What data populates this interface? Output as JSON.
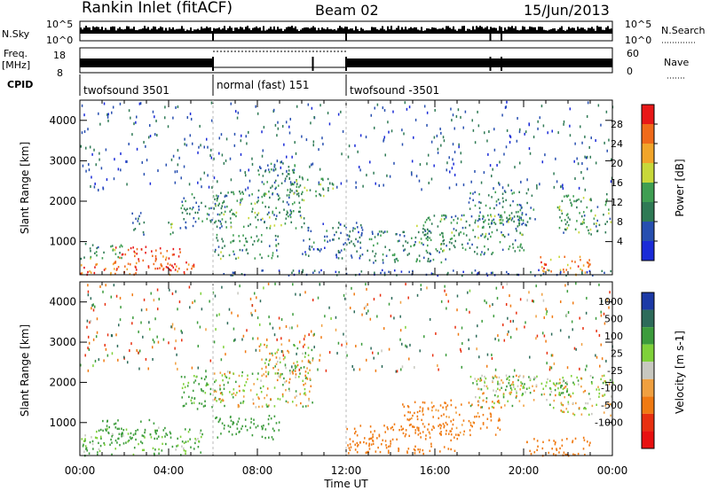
{
  "header": {
    "title": "Rankin Inlet (fitACF)",
    "beam": "Beam 02",
    "date": "15/Jun/2013"
  },
  "top_panels": {
    "nsky_label": "N.Sky",
    "nsky_ticks": [
      "10^5",
      "10^0"
    ],
    "nsearch_label": "N.Search",
    "freq_label": "Freq.",
    "freq_unit": "[MHz]",
    "freq_ticks": [
      "18",
      "8"
    ],
    "nave_label": "Nave",
    "nave_ticks": [
      "60",
      "0"
    ],
    "cpid_label": "CPID"
  },
  "cpid_segments": [
    {
      "label": "twofsound 3501",
      "start": 0,
      "end": 6
    },
    {
      "label": "normal (fast) 151",
      "start": 6,
      "end": 12
    },
    {
      "label": "twofsound -3501",
      "start": 12,
      "end": 24
    }
  ],
  "time_axis": {
    "label": "Time UT",
    "ticks": [
      "00:00",
      "04:00",
      "08:00",
      "12:00",
      "16:00",
      "20:00",
      "00:00"
    ]
  },
  "range_axis": {
    "label": "Slant Range [km]",
    "ticks": [
      "1000",
      "2000",
      "3000",
      "4000"
    ]
  },
  "power_scale": {
    "label": "Power [dB]",
    "ticks": [
      "4",
      "8",
      "12",
      "16",
      "20",
      "24",
      "28"
    ],
    "colors": [
      "#1a2bd8",
      "#274fb0",
      "#2f7a55",
      "#3f9e52",
      "#c8d83a",
      "#f1a52a",
      "#f06a1a",
      "#e81818"
    ]
  },
  "velocity_scale": {
    "label": "Velocity [m s-1]",
    "ticks": [
      "1000",
      "500",
      "100",
      "25",
      "-25",
      "-100",
      "-500",
      "-1000"
    ],
    "colors": [
      "#1c3aa6",
      "#2d6b5a",
      "#3c9c3c",
      "#7fd13a",
      "#c8c8c0",
      "#f0a040",
      "#f07a12",
      "#e83010",
      "#e81010"
    ]
  },
  "chart_data": [
    {
      "type": "heatmap",
      "title": "Power",
      "xlabel": "Time UT",
      "ylabel": "Slant Range [km]",
      "xlim": [
        0,
        24
      ],
      "ylim": [
        180,
        4500
      ],
      "colorbar_label": "Power [dB]",
      "regions": [
        {
          "t0": 0.0,
          "t1": 5.2,
          "r0": 200,
          "r1": 520,
          "v": 26
        },
        {
          "t0": 1.5,
          "t1": 4.5,
          "r0": 320,
          "r1": 900,
          "v": 28
        },
        {
          "t0": 0.0,
          "t1": 2.0,
          "r0": 600,
          "r1": 1000,
          "v": 12
        },
        {
          "t0": 2.3,
          "t1": 2.9,
          "r0": 1150,
          "r1": 1800,
          "v": 10
        },
        {
          "t0": 3.8,
          "t1": 4.3,
          "r0": 1200,
          "r1": 1550,
          "v": 14
        },
        {
          "t0": 4.5,
          "t1": 6.6,
          "r0": 1350,
          "r1": 2200,
          "v": 10
        },
        {
          "t0": 6.0,
          "t1": 10.2,
          "r0": 1350,
          "r1": 2300,
          "v": 12
        },
        {
          "t0": 8.0,
          "t1": 10.0,
          "r0": 2100,
          "r1": 3000,
          "v": 10
        },
        {
          "t0": 9.5,
          "t1": 11.4,
          "r0": 2150,
          "r1": 2600,
          "v": 14
        },
        {
          "t0": 6.0,
          "t1": 9.0,
          "r0": 600,
          "r1": 1200,
          "v": 12
        },
        {
          "t0": 10.0,
          "t1": 13.0,
          "r0": 600,
          "r1": 1500,
          "v": 8
        },
        {
          "t0": 13.0,
          "t1": 16.5,
          "r0": 500,
          "r1": 1300,
          "v": 10
        },
        {
          "t0": 15.0,
          "t1": 20.0,
          "r0": 700,
          "r1": 1700,
          "v": 12
        },
        {
          "t0": 17.5,
          "t1": 20.5,
          "r0": 1400,
          "r1": 2300,
          "v": 10
        },
        {
          "t0": 21.5,
          "t1": 24.0,
          "r0": 1200,
          "r1": 2200,
          "v": 12
        },
        {
          "t0": 20.5,
          "t1": 23.0,
          "r0": 200,
          "r1": 650,
          "v": 24
        },
        {
          "t0": 6.0,
          "t1": 24.0,
          "r0": 180,
          "r1": 320,
          "v": 6
        }
      ]
    },
    {
      "type": "heatmap",
      "title": "Velocity",
      "xlabel": "Time UT",
      "ylabel": "Slant Range [km]",
      "xlim": [
        0,
        24
      ],
      "ylim": [
        180,
        4500
      ],
      "colorbar_label": "Velocity [m s-1]",
      "regions": [
        {
          "t0": 0.0,
          "t1": 5.5,
          "r0": 200,
          "r1": 900,
          "v": 150
        },
        {
          "t0": 1.0,
          "t1": 3.5,
          "r0": 600,
          "r1": 1100,
          "v": 300
        },
        {
          "t0": 4.5,
          "t1": 6.5,
          "r0": 1350,
          "r1": 2200,
          "v": 200
        },
        {
          "t0": 6.0,
          "t1": 10.5,
          "r0": 1400,
          "r1": 2300,
          "v": 0
        },
        {
          "t0": 8.0,
          "t1": 10.5,
          "r0": 2100,
          "r1": 3000,
          "v": 0
        },
        {
          "t0": 6.0,
          "t1": 9.0,
          "r0": 600,
          "r1": 1200,
          "v": 300
        },
        {
          "t0": 12.0,
          "t1": 17.0,
          "r0": 250,
          "r1": 1000,
          "v": -300
        },
        {
          "t0": 14.5,
          "t1": 19.0,
          "r0": 700,
          "r1": 1600,
          "v": -200
        },
        {
          "t0": 17.5,
          "t1": 20.5,
          "r0": 1400,
          "r1": 2200,
          "v": 0
        },
        {
          "t0": 21.0,
          "t1": 24.0,
          "r0": 1200,
          "r1": 2200,
          "v": 0
        },
        {
          "t0": 20.0,
          "t1": 23.0,
          "r0": 200,
          "r1": 650,
          "v": -350
        },
        {
          "t0": 18.0,
          "t1": 22.0,
          "r0": 1700,
          "r1": 2200,
          "v": 80
        }
      ]
    }
  ]
}
